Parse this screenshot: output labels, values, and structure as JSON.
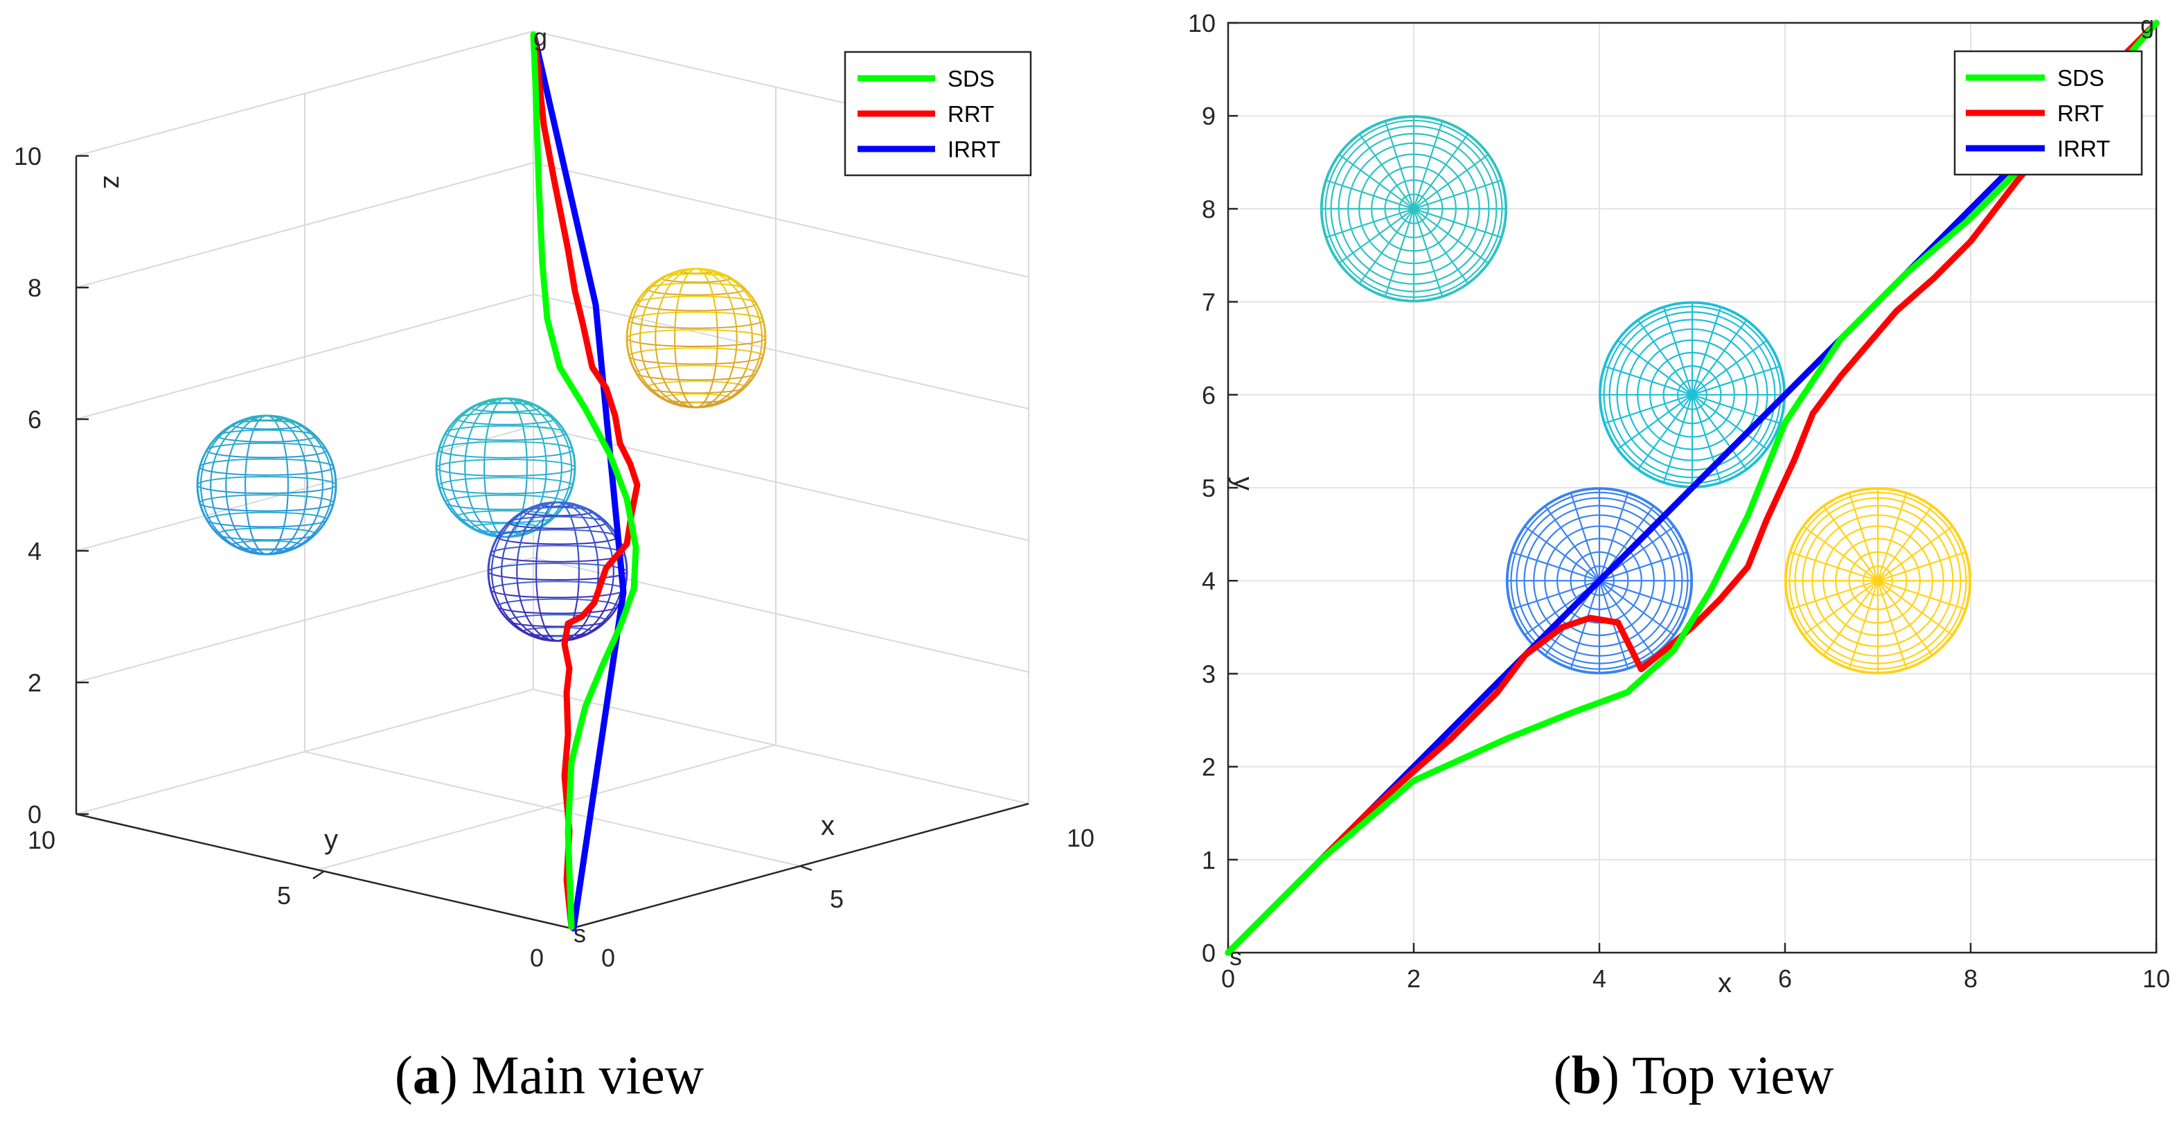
{
  "chart_data": [
    {
      "type": "line",
      "title": "",
      "view": "3d",
      "xlabel": "x",
      "ylabel": "y",
      "zlabel": "z",
      "xlim": [
        0,
        10
      ],
      "ylim": [
        0,
        10
      ],
      "zlim": [
        0,
        10
      ],
      "x_ticks": [
        "0",
        "5",
        "10"
      ],
      "y_ticks": [
        "0",
        "5",
        "10"
      ],
      "z_ticks": [
        "0",
        "2",
        "4",
        "6",
        "8",
        "10"
      ],
      "start_label": "s",
      "goal_label": "g",
      "legend": [
        "SDS",
        "RRT",
        "IRRT"
      ],
      "series": [
        {
          "name": "SDS",
          "color": "#00ff00",
          "points": [
            [
              0,
              0,
              0
            ],
            [
              2,
              1.8,
              2
            ],
            [
              4,
              2.7,
              3.6
            ],
            [
              5.5,
              4.8,
              5.5
            ],
            [
              7,
              7,
              7.5
            ],
            [
              10,
              10,
              11.5
            ]
          ]
        },
        {
          "name": "RRT",
          "color": "#ff0000",
          "points": [
            [
              0,
              0,
              0
            ],
            [
              2,
              1.9,
              1.8
            ],
            [
              4.5,
              3,
              2.6
            ],
            [
              5.8,
              5.5,
              5.1
            ],
            [
              7.5,
              7,
              7.5
            ],
            [
              10,
              10,
              11.5
            ]
          ]
        },
        {
          "name": "IRRT",
          "color": "#0000ff",
          "points": [
            [
              0,
              0,
              0
            ],
            [
              10,
              10,
              11.5
            ]
          ]
        }
      ],
      "obstacles": [
        {
          "cx": 2,
          "cy": 8,
          "cz": 5,
          "r": 1
        },
        {
          "cx": 5,
          "cy": 6,
          "cz": 5.3,
          "r": 1
        },
        {
          "cx": 4,
          "cy": 4,
          "cz": 3.9,
          "r": 1
        },
        {
          "cx": 7,
          "cy": 4,
          "cz": 7.3,
          "r": 1
        }
      ],
      "caption_label": "a",
      "caption_text": "Main view"
    },
    {
      "type": "line",
      "title": "",
      "view": "top",
      "xlabel": "x",
      "ylabel": "y",
      "xlim": [
        0,
        10
      ],
      "ylim": [
        0,
        10
      ],
      "x_ticks": [
        "0",
        "2",
        "4",
        "6",
        "8",
        "10"
      ],
      "y_ticks": [
        "0",
        "1",
        "2",
        "3",
        "4",
        "5",
        "6",
        "7",
        "8",
        "9",
        "10"
      ],
      "start_label": "s",
      "goal_label": "g",
      "legend": [
        "SDS",
        "RRT",
        "IRRT"
      ],
      "series": [
        {
          "name": "SDS",
          "color": "#00ff00",
          "x": [
            0,
            1,
            2,
            3,
            3.7,
            4.3,
            4.8,
            5.2,
            5.6,
            6,
            6.6,
            7.3,
            8,
            8.7,
            9.4,
            10
          ],
          "y": [
            0,
            1,
            1.85,
            2.3,
            2.58,
            2.8,
            3.25,
            3.9,
            4.7,
            5.7,
            6.6,
            7.3,
            7.9,
            8.6,
            9.3,
            10
          ]
        },
        {
          "name": "RRT",
          "color": "#ff0000",
          "x": [
            0,
            0.5,
            1,
            1.5,
            2,
            2.4,
            2.9,
            3.2,
            3.6,
            3.9,
            4.2,
            4.45,
            4.7,
            5,
            5.3,
            5.6,
            5.8,
            6.1,
            6.3,
            6.6,
            6.9,
            7.2,
            7.6,
            8,
            8.5,
            9,
            9.5,
            10
          ],
          "y": [
            0,
            0.5,
            1,
            1.5,
            1.95,
            2.3,
            2.8,
            3.2,
            3.5,
            3.6,
            3.55,
            3.05,
            3.25,
            3.5,
            3.8,
            4.15,
            4.65,
            5.3,
            5.8,
            6.2,
            6.55,
            6.9,
            7.25,
            7.65,
            8.3,
            8.9,
            9.5,
            10
          ]
        },
        {
          "name": "IRRT",
          "color": "#0000ff",
          "x": [
            0,
            10
          ],
          "y": [
            0,
            10
          ]
        }
      ],
      "obstacles": [
        {
          "cx": 2,
          "cy": 8,
          "r": 1,
          "color": "#2ec2c4"
        },
        {
          "cx": 5,
          "cy": 6,
          "r": 1,
          "color": "#1fbfd6"
        },
        {
          "cx": 4,
          "cy": 4,
          "r": 1,
          "color": "#3b82f0"
        },
        {
          "cx": 7,
          "cy": 4,
          "r": 1,
          "color": "#ffd21a"
        }
      ],
      "caption_label": "b",
      "caption_text": "Top view"
    }
  ]
}
